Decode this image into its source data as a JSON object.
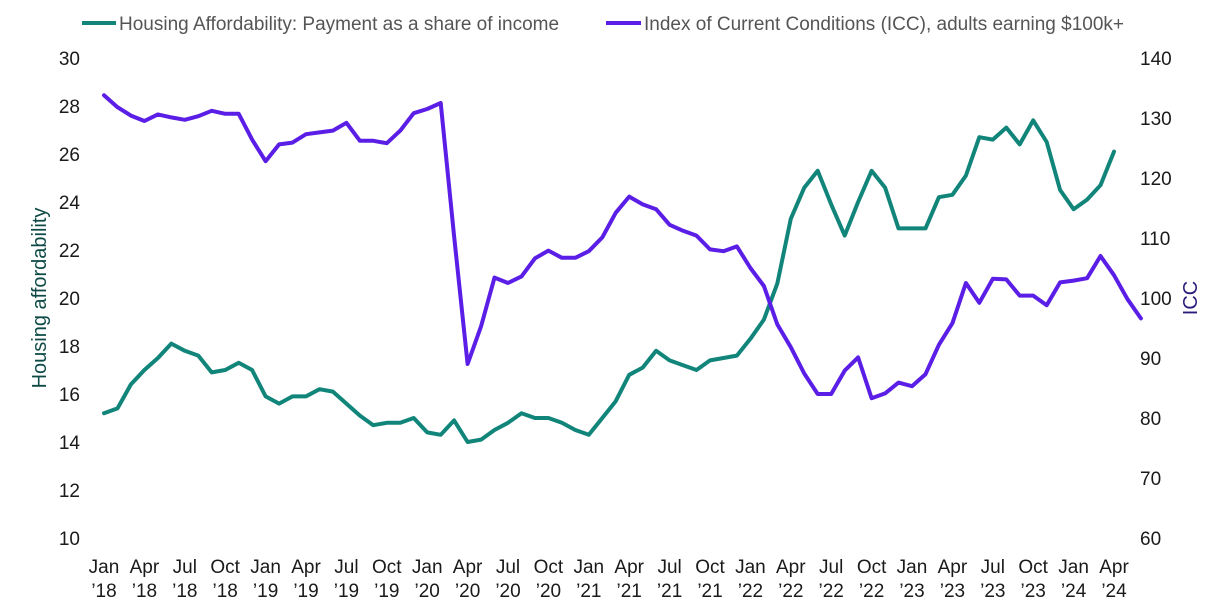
{
  "chart_data": {
    "type": "line",
    "legend_position": "top",
    "grid": false,
    "left_axis": {
      "label": "Housing affordability",
      "min": 10,
      "max": 30,
      "ticks": [
        "10",
        "12",
        "14",
        "16",
        "18",
        "20",
        "22",
        "24",
        "26",
        "28",
        "30"
      ]
    },
    "right_axis": {
      "label": "ICC",
      "min": 60,
      "max": 140,
      "ticks": [
        "60",
        "70",
        "80",
        "90",
        "100",
        "110",
        "120",
        "130",
        "140"
      ]
    },
    "x_ticks": [
      {
        "month": "Jan",
        "year": "’18"
      },
      {
        "month": "Apr",
        "year": "’18"
      },
      {
        "month": "Jul",
        "year": "’18"
      },
      {
        "month": "Oct",
        "year": "’18"
      },
      {
        "month": "Jan",
        "year": "’19"
      },
      {
        "month": "Apr",
        "year": "’19"
      },
      {
        "month": "Jul",
        "year": "’19"
      },
      {
        "month": "Oct",
        "year": "’19"
      },
      {
        "month": "Jan",
        "year": "’20"
      },
      {
        "month": "Apr",
        "year": "’20"
      },
      {
        "month": "Jul",
        "year": "’20"
      },
      {
        "month": "Oct",
        "year": "’20"
      },
      {
        "month": "Jan",
        "year": "’21"
      },
      {
        "month": "Apr",
        "year": "’21"
      },
      {
        "month": "Jul",
        "year": "’21"
      },
      {
        "month": "Oct",
        "year": "’21"
      },
      {
        "month": "Jan",
        "year": "’22"
      },
      {
        "month": "Apr",
        "year": "’22"
      },
      {
        "month": "Jul",
        "year": "’22"
      },
      {
        "month": "Oct",
        "year": "’22"
      },
      {
        "month": "Jan",
        "year": "’23"
      },
      {
        "month": "Apr",
        "year": "’23"
      },
      {
        "month": "Jul",
        "year": "’23"
      },
      {
        "month": "Oct",
        "year": "’23"
      },
      {
        "month": "Jan",
        "year": "’24"
      },
      {
        "month": "Apr",
        "year": "’24"
      }
    ],
    "series": [
      {
        "name": "Housing Affordability: Payment as a share of income",
        "axis": "left",
        "color": "#12857a",
        "values": [
          15.2,
          15.4,
          16.4,
          17.0,
          17.5,
          18.1,
          17.8,
          17.6,
          16.9,
          17.0,
          17.3,
          17.0,
          15.9,
          15.6,
          15.9,
          15.9,
          16.2,
          16.1,
          15.6,
          15.1,
          14.7,
          14.8,
          14.8,
          15.0,
          14.4,
          14.3,
          14.9,
          14.0,
          14.1,
          14.5,
          14.8,
          15.2,
          15.0,
          15.0,
          14.8,
          14.5,
          14.3,
          15.0,
          15.7,
          16.8,
          17.1,
          17.8,
          17.4,
          17.2,
          17.0,
          17.4,
          17.5,
          17.6,
          18.3,
          19.1,
          20.6,
          23.3,
          24.6,
          25.3,
          23.9,
          22.6,
          24.0,
          25.3,
          24.6,
          22.9,
          22.9,
          22.9,
          24.2,
          24.3,
          25.1,
          26.7,
          26.6,
          27.1,
          26.4,
          27.4,
          26.5,
          24.5,
          23.7,
          24.1,
          24.7,
          26.1
        ]
      },
      {
        "name": "Index of Current Conditions (ICC), adults earning $100k+",
        "axis": "right",
        "color": "#5a1ee6",
        "values": [
          133.8,
          131.8,
          130.4,
          129.5,
          130.6,
          130.1,
          129.7,
          130.3,
          131.2,
          130.7,
          130.7,
          126.4,
          122.8,
          125.6,
          125.9,
          127.3,
          127.6,
          127.9,
          129.2,
          126.2,
          126.2,
          125.8,
          127.9,
          130.8,
          131.5,
          132.5,
          110.3,
          89.0,
          95.3,
          103.4,
          102.5,
          103.6,
          106.6,
          107.9,
          106.7,
          106.7,
          107.8,
          110.1,
          114.2,
          116.9,
          115.6,
          114.8,
          112.2,
          111.2,
          110.4,
          108.1,
          107.8,
          108.6,
          105.0,
          102.0,
          95.6,
          91.8,
          87.4,
          84.0,
          84.0,
          87.9,
          90.1,
          83.3,
          84.1,
          85.9,
          85.3,
          87.3,
          92.2,
          95.8,
          102.5,
          99.2,
          103.2,
          103.1,
          100.4,
          100.4,
          98.8,
          102.6,
          102.9,
          103.3,
          107.0,
          103.8,
          99.8,
          96.6
        ]
      }
    ]
  }
}
